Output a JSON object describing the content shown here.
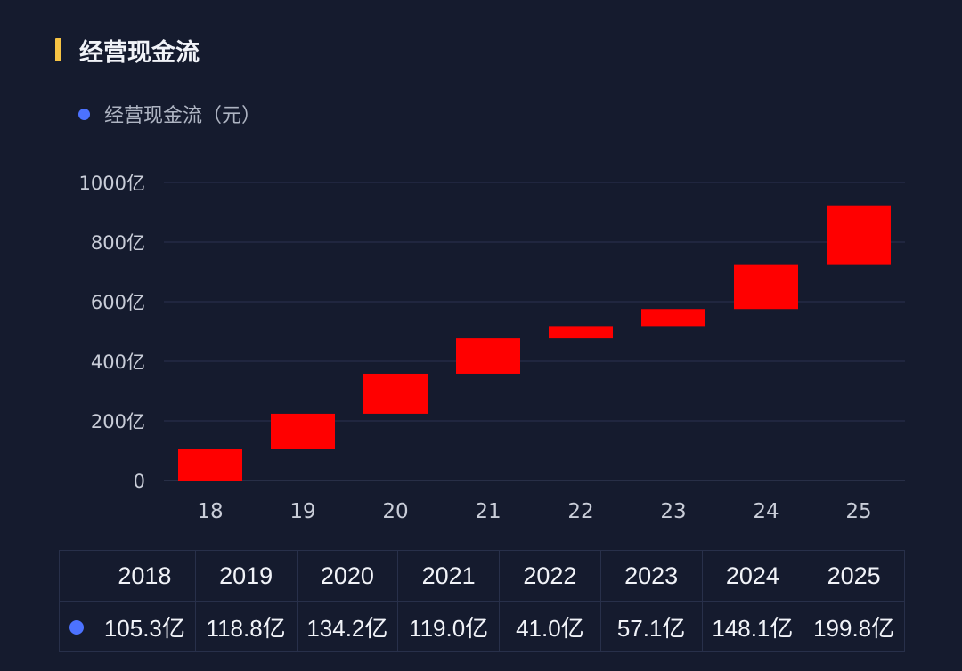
{
  "header": {
    "title": "经营现金流"
  },
  "legend": {
    "label": "经营现金流（元）",
    "color": "#4c72ff"
  },
  "chart_data": {
    "type": "bar",
    "subtype": "waterfall",
    "categories": [
      "18",
      "19",
      "20",
      "21",
      "22",
      "23",
      "24",
      "25"
    ],
    "values": [
      105.3,
      118.8,
      134.2,
      119.0,
      41.0,
      57.1,
      148.1,
      199.8
    ],
    "series": [
      {
        "name": "经营现金流（元）",
        "values": [
          105.3,
          118.8,
          134.2,
          119.0,
          41.0,
          57.1,
          148.1,
          199.8
        ]
      }
    ],
    "ylim": [
      0,
      1000
    ],
    "yticks": [
      0,
      200,
      400,
      600,
      800,
      1000
    ],
    "ytick_labels": [
      "0",
      "200亿",
      "400亿",
      "600亿",
      "800亿",
      "1000亿"
    ],
    "bar_color": "#ff0000",
    "grid": true
  },
  "table": {
    "years": [
      "2018",
      "2019",
      "2020",
      "2021",
      "2022",
      "2023",
      "2024",
      "2025"
    ],
    "values": [
      "105.3亿",
      "118.8亿",
      "134.2亿",
      "119.0亿",
      "41.0亿",
      "57.1亿",
      "148.1亿",
      "199.8亿"
    ]
  }
}
